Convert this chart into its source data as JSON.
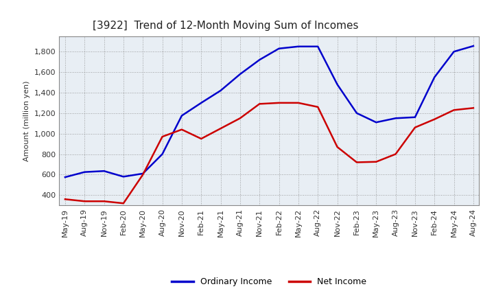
{
  "title": "[3922]  Trend of 12-Month Moving Sum of Incomes",
  "ylabel": "Amount (million yen)",
  "x_labels": [
    "May-19",
    "Aug-19",
    "Nov-19",
    "Feb-20",
    "May-20",
    "Aug-20",
    "Nov-20",
    "Feb-21",
    "May-21",
    "Aug-21",
    "Nov-21",
    "Feb-22",
    "May-22",
    "Aug-22",
    "Nov-22",
    "Feb-23",
    "May-23",
    "Aug-23",
    "Nov-23",
    "Feb-24",
    "May-24",
    "Aug-24"
  ],
  "ordinary_income": [
    575,
    625,
    635,
    580,
    610,
    800,
    1175,
    1300,
    1420,
    1580,
    1720,
    1830,
    1850,
    1850,
    1480,
    1200,
    1110,
    1150,
    1160,
    1550,
    1800,
    1855
  ],
  "net_income": [
    360,
    340,
    340,
    320,
    600,
    970,
    1040,
    950,
    1050,
    1150,
    1290,
    1300,
    1300,
    1260,
    870,
    720,
    725,
    800,
    1060,
    1140,
    1230,
    1250
  ],
  "ordinary_color": "#0000CC",
  "net_color": "#CC0000",
  "ylim_min": 300,
  "ylim_max": 1950,
  "yticks": [
    400,
    600,
    800,
    1000,
    1200,
    1400,
    1600,
    1800
  ],
  "plot_bg_color": "#E8EEF4",
  "fig_bg_color": "#FFFFFF",
  "grid_color": "#AAAAAA",
  "line_width": 1.8,
  "title_fontsize": 11,
  "axis_label_fontsize": 8,
  "tick_fontsize": 8,
  "legend_labels": [
    "Ordinary Income",
    "Net Income"
  ],
  "legend_fontsize": 9
}
